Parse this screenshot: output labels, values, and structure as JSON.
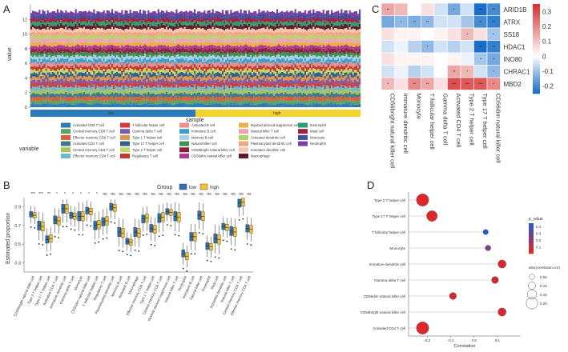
{
  "chart_data": [
    {
      "panel": "A",
      "type": "bar",
      "stacked": true,
      "ylabel": "value",
      "xlabel": "sample",
      "ylim": [
        0,
        14
      ],
      "yticks": [
        0,
        2,
        4,
        6,
        8,
        10,
        12
      ],
      "groups": [
        "low",
        "high"
      ],
      "group_colors": [
        "#2b7bba",
        "#f2d22e"
      ],
      "legend_title": "variable",
      "series": [
        {
          "name": "Activated CD8 T cell",
          "color": "#2f79b5",
          "value": 0.5
        },
        {
          "name": "Central memory CD8 T cell",
          "color": "#5aa364",
          "value": 0.5
        },
        {
          "name": "Effector memory CD8 T cell",
          "color": "#d95f38",
          "value": 0.5
        },
        {
          "name": "Activated CD4 T cell",
          "color": "#3a7a8c",
          "value": 0.5
        },
        {
          "name": "Central memory CD4 T cell",
          "color": "#a9c35e",
          "value": 0.5
        },
        {
          "name": "Effector memory CD4 T cell",
          "color": "#6fb8c9",
          "value": 0.5
        },
        {
          "name": "T follicular helper cell",
          "color": "#cf3b3b",
          "value": 0.5
        },
        {
          "name": "Gamma delta T cell",
          "color": "#7e5aa6",
          "value": 0.5
        },
        {
          "name": "Type 1 T helper cell",
          "color": "#e0944a",
          "value": 0.5
        },
        {
          "name": "Type 17 T helper cell",
          "color": "#2f5f8a",
          "value": 0.5
        },
        {
          "name": "Type 2 T helper cell",
          "color": "#c6d66a",
          "value": 0.5
        },
        {
          "name": "Regulatory T cell",
          "color": "#c0392b",
          "value": 0.5
        },
        {
          "name": "Activated B cell",
          "color": "#e88f8f",
          "value": 0.5
        },
        {
          "name": "Immature B cell",
          "color": "#3b9ec9",
          "value": 0.5
        },
        {
          "name": "Memory B cell",
          "color": "#a6d1e6",
          "value": 0.5
        },
        {
          "name": "Natural killer cell",
          "color": "#3f8f4f",
          "value": 0.5
        },
        {
          "name": "CD56bright natural killer cell",
          "color": "#8b1f3f",
          "value": 0.5
        },
        {
          "name": "CD56dim natural killer cell",
          "color": "#b03a8c",
          "value": 0.5
        },
        {
          "name": "Myeloid derived suppressor cell",
          "color": "#e8b04a",
          "value": 0.5
        },
        {
          "name": "Natural killer T cell",
          "color": "#f0a3b8",
          "value": 0.5
        },
        {
          "name": "Activated dendritic cell",
          "color": "#b5d36b",
          "value": 0.5
        },
        {
          "name": "Plasmacytoid dendritic cell",
          "color": "#f2a488",
          "value": 0.5
        },
        {
          "name": "Immature dendritic cell",
          "color": "#f6c6a8",
          "value": 0.5
        },
        {
          "name": "Macrophage",
          "color": "#5c1a2a",
          "value": 0.5
        },
        {
          "name": "Eosinophil",
          "color": "#2e9e6e",
          "value": 0.5
        },
        {
          "name": "Mast cell",
          "color": "#a02040",
          "value": 0.5
        },
        {
          "name": "Monocyte",
          "color": "#3c4fa0",
          "value": 0.5
        },
        {
          "name": "Neutrophil",
          "color": "#7a3fa0",
          "value": 0.5
        }
      ]
    },
    {
      "panel": "B",
      "type": "box",
      "ylabel": "Estimated proportion",
      "legend_title": "Group",
      "groups": [
        "low",
        "high"
      ],
      "group_colors": [
        "#2f6fb0",
        "#f2c232"
      ],
      "ylim": [
        0.2,
        1.0
      ],
      "yticks": [
        0.3,
        0.5,
        0.7,
        0.9
      ],
      "categories": [
        "CD56bright natural killer cell",
        "Type 2 T helper cell",
        "Type 17 T helper cell",
        "Activated CD4 T cell",
        "Immature dendritic cell",
        "Gamma delta T cell",
        "Monocyte",
        "CD56dim natural killer cell",
        "T follicular helper cell",
        "Regulatory T cell",
        "Plasmacytoid dendritic cell",
        "Memory B cell",
        "Activated B cell",
        "Macrophage",
        "Effector memory CD8 T cell",
        "Type 1 T helper cell",
        "Central memory CD8 T cell",
        "Myeloid derived suppressor cell",
        "Natural killer T cell",
        "Neutrophil",
        "Immature B cell",
        "Natural killer cell",
        "Eosinophil",
        "Mast cell",
        "Activated dendritic cell",
        "Natural killer T cell",
        "Central memory CD4 T cell",
        "Effector memory CD4 T cell"
      ],
      "significance": [
        "***",
        "***",
        "**",
        "*",
        "*",
        "*",
        "*",
        "*",
        "*",
        "ns",
        "ns",
        "ns",
        "ns",
        "ns",
        "ns",
        "ns",
        "ns",
        "ns",
        "ns",
        "ns",
        "ns",
        "ns",
        "ns",
        "ns",
        "ns",
        "ns",
        "ns",
        "ns"
      ],
      "medians_low": [
        0.82,
        0.7,
        0.55,
        0.76,
        0.88,
        0.81,
        0.8,
        0.86,
        0.7,
        0.74,
        0.9,
        0.63,
        0.53,
        0.63,
        0.77,
        0.67,
        0.78,
        0.85,
        0.8,
        0.4,
        0.58,
        0.81,
        0.48,
        0.56,
        0.69,
        0.64,
        0.94,
        0.67
      ],
      "medians_high": [
        0.81,
        0.69,
        0.56,
        0.75,
        0.88,
        0.8,
        0.8,
        0.85,
        0.71,
        0.75,
        0.89,
        0.62,
        0.52,
        0.62,
        0.78,
        0.66,
        0.79,
        0.84,
        0.79,
        0.37,
        0.58,
        0.8,
        0.47,
        0.55,
        0.68,
        0.63,
        0.95,
        0.66
      ]
    },
    {
      "panel": "C",
      "type": "heatmap",
      "rows": [
        "ARID1B",
        "ATRX",
        "SS18",
        "HDAC1",
        "INO80",
        "CHRAC1",
        "MBD2"
      ],
      "columns": [
        "CD56bright natural killer cell",
        "Immature dendritic cell",
        "Monocyte",
        "T follicular helper cell",
        "Gamma delta T cell",
        "Activated CD4 T cell",
        "Type 2 T helper cell",
        "Type 17 T helper cell",
        "CD56dim natural killer cell"
      ],
      "values": [
        [
          0.15,
          0.12,
          0.0,
          0.05,
          -0.05,
          -0.15,
          -0.05,
          -0.25,
          -0.2
        ],
        [
          -0.15,
          -0.12,
          -0.14,
          -0.12,
          -0.05,
          -0.05,
          -0.1,
          -0.2,
          -0.22
        ],
        [
          0.05,
          0.02,
          0.02,
          0.0,
          0.02,
          0.05,
          0.12,
          0.05,
          -0.1
        ],
        [
          -0.05,
          -0.02,
          -0.08,
          -0.12,
          -0.05,
          -0.08,
          -0.05,
          -0.25,
          -0.22
        ],
        [
          0.05,
          0.02,
          0.02,
          0.02,
          0.0,
          0.02,
          -0.02,
          -0.1,
          -0.15
        ],
        [
          -0.05,
          -0.02,
          -0.08,
          -0.05,
          0.0,
          0.15,
          0.12,
          -0.05,
          -0.12
        ],
        [
          0.12,
          0.05,
          0.2,
          0.15,
          0.05,
          0.3,
          0.28,
          0.28,
          0.2
        ]
      ],
      "stars": [
        [
          "**",
          "",
          "",
          "",
          "",
          "*",
          "",
          "**",
          "**"
        ],
        [
          "",
          "*",
          "**",
          "**",
          "",
          "",
          "",
          "**",
          "**"
        ],
        [
          "",
          "",
          "",
          "",
          "",
          "",
          "*",
          "",
          "*"
        ],
        [
          "",
          "",
          "",
          "*",
          "",
          "",
          "",
          "**",
          "**"
        ],
        [
          "",
          "",
          "",
          "",
          "",
          "",
          "",
          "*",
          "*"
        ],
        [
          "",
          "",
          "",
          "",
          "",
          "**",
          "*",
          "",
          "*"
        ],
        [
          "*",
          "",
          "**",
          "**",
          "",
          "***",
          "***",
          "***",
          "*"
        ]
      ],
      "colorbar_ticks": [
        0.3,
        0.2,
        0.1,
        0,
        -0.1,
        -0.2
      ],
      "vmin": -0.25,
      "vmax": 0.35
    },
    {
      "panel": "D",
      "type": "scatter",
      "xlabel": "Correlation",
      "xlim": [
        -0.28,
        0.2
      ],
      "xticks": [
        -0.2,
        -0.1,
        0.0,
        0.1
      ],
      "xtick_labels": [
        "-0.2",
        "-0.1",
        "0.0",
        "0.1"
      ],
      "categories": [
        "Type 2 T helper cell",
        "Type 17 T helper cell",
        "T follicular helper cell",
        "Monocyte",
        "Immature dendritic cell",
        "Gamma delta T cell",
        "CD56dim natural killer cell",
        "CD56bright natural killer cell",
        "Activated CD4 T cell"
      ],
      "correlation": [
        -0.22,
        -0.18,
        0.05,
        0.06,
        0.12,
        0.09,
        -0.09,
        0.12,
        -0.22
      ],
      "p_value": [
        0.001,
        0.001,
        0.45,
        0.25,
        0.01,
        0.05,
        0.02,
        0.02,
        0.001
      ],
      "legend_p_title": "p_value",
      "legend_p_ticks": [
        0.4,
        0.3,
        0.2,
        0.1
      ],
      "legend_size_title": "abs(correlation.cor)",
      "legend_size_ticks": [
        0.05,
        0.1,
        0.15,
        0.2
      ]
    }
  ],
  "panels": [
    "A",
    "B",
    "C",
    "D"
  ],
  "labels": {
    "a_ylabel": "value",
    "a_xlabel": "sample",
    "a_group_low": "low",
    "a_group_high": "high",
    "a_legend_title": "variable",
    "b_legend_title": "Group",
    "b_low": "low",
    "b_high": "high"
  }
}
